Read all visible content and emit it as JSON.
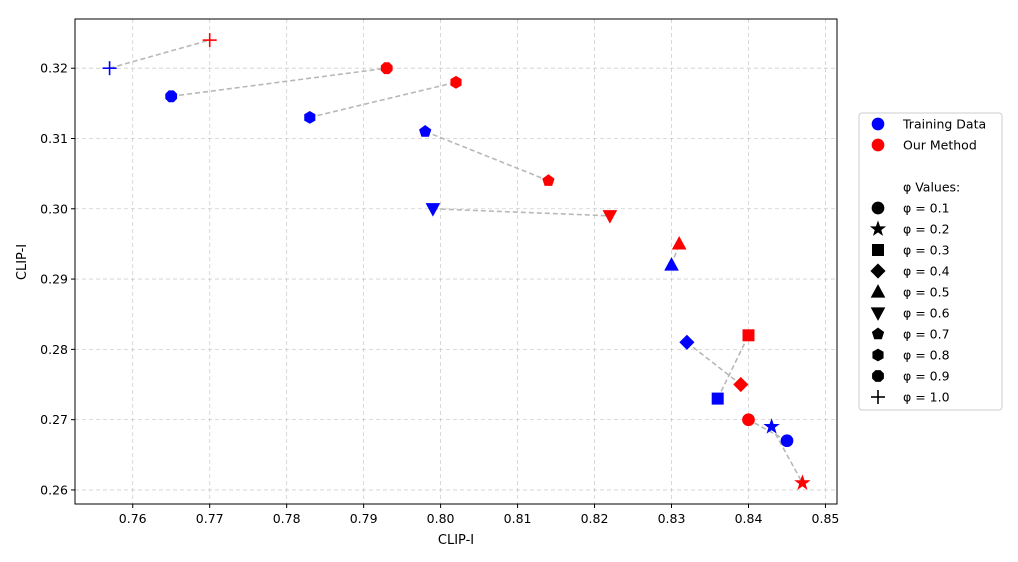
{
  "chart_data": {
    "type": "scatter",
    "title": "",
    "xlabel": "CLIP-I",
    "ylabel": "CLIP-I",
    "xlim": [
      0.7525,
      0.8515
    ],
    "ylim": [
      0.258,
      0.327
    ],
    "x_ticks": [
      "0.76",
      "0.77",
      "0.78",
      "0.79",
      "0.80",
      "0.81",
      "0.82",
      "0.83",
      "0.84",
      "0.85"
    ],
    "y_ticks": [
      "0.26",
      "0.27",
      "0.28",
      "0.29",
      "0.30",
      "0.31",
      "0.32"
    ],
    "grid": true,
    "legend_placement": "outside-right",
    "colors": {
      "training": "#0000ff",
      "ours": "#ff0000",
      "connector": "#b8b8b8"
    },
    "series": [
      {
        "name": "Training Data",
        "color": "#0000ff"
      },
      {
        "name": "Our Method",
        "color": "#ff0000"
      }
    ],
    "phi_header": "φ Values:",
    "phi_values": [
      {
        "label": "φ = 0.1",
        "marker": "circle",
        "training": [
          0.845,
          0.267
        ],
        "ours": [
          0.84,
          0.27
        ]
      },
      {
        "label": "φ = 0.2",
        "marker": "star",
        "training": [
          0.843,
          0.269
        ],
        "ours": [
          0.847,
          0.261
        ]
      },
      {
        "label": "φ = 0.3",
        "marker": "square",
        "training": [
          0.836,
          0.273
        ],
        "ours": [
          0.84,
          0.282
        ]
      },
      {
        "label": "φ = 0.4",
        "marker": "diamond",
        "training": [
          0.832,
          0.281
        ],
        "ours": [
          0.839,
          0.275
        ]
      },
      {
        "label": "φ = 0.5",
        "marker": "triangle-up",
        "training": [
          0.83,
          0.292
        ],
        "ours": [
          0.831,
          0.295
        ]
      },
      {
        "label": "φ = 0.6",
        "marker": "triangle-down",
        "training": [
          0.799,
          0.3
        ],
        "ours": [
          0.822,
          0.299
        ]
      },
      {
        "label": "φ = 0.7",
        "marker": "pentagon",
        "training": [
          0.798,
          0.311
        ],
        "ours": [
          0.814,
          0.304
        ]
      },
      {
        "label": "φ = 0.8",
        "marker": "hexagon",
        "training": [
          0.783,
          0.313
        ],
        "ours": [
          0.802,
          0.318
        ]
      },
      {
        "label": "φ = 0.9",
        "marker": "octagon",
        "training": [
          0.765,
          0.316
        ],
        "ours": [
          0.793,
          0.32
        ]
      },
      {
        "label": "φ = 1.0",
        "marker": "plus",
        "training": [
          0.757,
          0.32
        ],
        "ours": [
          0.77,
          0.324
        ]
      }
    ]
  }
}
